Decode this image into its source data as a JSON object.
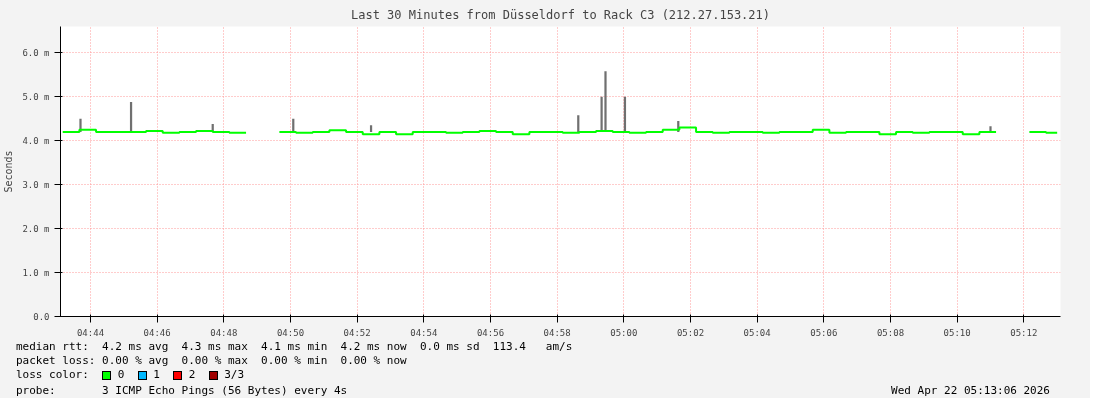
{
  "chart_data": {
    "type": "step",
    "title": "Last 30 Minutes from Düsseldorf to Rack C3 (212.27.153.21)",
    "ylabel": "Seconds",
    "legend_title": "loss color:",
    "legend": "bottom left",
    "grid": true,
    "xlim": [
      "2026-04-22T04:43:06",
      "2026-04-22T05:13:06"
    ],
    "xticks": [
      {
        "value": "2026-04-22T04:44",
        "label": "04:44"
      },
      {
        "value": "2026-04-22T04:46",
        "label": "04:46"
      },
      {
        "value": "2026-04-22T04:48",
        "label": "04:48"
      },
      {
        "value": "2026-04-22T04:50",
        "label": "04:50"
      },
      {
        "value": "2026-04-22T04:52",
        "label": "04:52"
      },
      {
        "value": "2026-04-22T04:54",
        "label": "04:54"
      },
      {
        "value": "2026-04-22T04:56",
        "label": "04:56"
      },
      {
        "value": "2026-04-22T04:58",
        "label": "04:58"
      },
      {
        "value": "2026-04-22T05:00",
        "label": "05:00"
      },
      {
        "value": "2026-04-22T05:02",
        "label": "05:02"
      },
      {
        "value": "2026-04-22T05:04",
        "label": "05:04"
      },
      {
        "value": "2026-04-22T05:06",
        "label": "05:06"
      },
      {
        "value": "2026-04-22T05:08",
        "label": "05:08"
      },
      {
        "value": "2026-04-22T05:10",
        "label": "05:10"
      },
      {
        "value": "2026-04-22T05:12",
        "label": "05:12"
      }
    ],
    "ylim": [
      0,
      6.6
    ],
    "yticks": [
      {
        "value": 0,
        "label": "0.0"
      },
      {
        "value": 1,
        "label": "1.0 m"
      },
      {
        "value": 2,
        "label": "2.0 m"
      },
      {
        "value": 3,
        "label": "3.0 m"
      },
      {
        "value": 4,
        "label": "4.0 m"
      },
      {
        "value": 5,
        "label": "5.0 m"
      },
      {
        "value": 6,
        "label": "6.0 m"
      }
    ],
    "series": [
      {
        "type": "bar",
        "color": "#707070",
        "x": [
          "2026-04-22T04:43:42",
          "2026-04-22T04:45:13",
          "2026-04-22T04:47:40",
          "2026-04-22T04:50:05",
          "2026-04-22T04:52:25",
          "2026-04-22T04:58:38",
          "2026-04-22T04:59:20",
          "2026-04-22T04:59:27",
          "2026-04-22T05:00:02",
          "2026-04-22T05:01:38",
          "2026-04-22T05:11:00"
        ],
        "base": [
          4.2,
          4.2,
          4.2,
          4.2,
          4.2,
          4.2,
          4.2,
          4.2,
          4.2,
          4.2,
          4.2
        ],
        "values": [
          0.3,
          0.68,
          0.18,
          0.3,
          0.15,
          0.38,
          0.8,
          1.38,
          0.8,
          0.25,
          0.13
        ]
      },
      {
        "name": "0",
        "color": "#00ff00",
        "x": [
          "2026-04-22T04:43:10",
          "2026-04-22T04:43:40",
          "2026-04-22T04:44:10",
          "2026-04-22T04:44:40",
          "2026-04-22T04:45:10",
          "2026-04-22T04:45:40",
          "2026-04-22T04:46:10",
          "2026-04-22T04:46:40",
          "2026-04-22T04:47:10",
          "2026-04-22T04:47:40",
          "2026-04-22T04:48:10",
          "2026-04-22T04:48:40",
          "2026-04-22T04:49:10",
          "2026-04-22T04:49:40",
          "2026-04-22T04:50:10",
          "2026-04-22T04:50:40",
          "2026-04-22T04:51:10",
          "2026-04-22T04:51:40",
          "2026-04-22T04:52:10",
          "2026-04-22T04:52:40",
          "2026-04-22T04:53:10",
          "2026-04-22T04:53:40",
          "2026-04-22T04:54:10",
          "2026-04-22T04:54:40",
          "2026-04-22T04:55:10",
          "2026-04-22T04:55:40",
          "2026-04-22T04:56:10",
          "2026-04-22T04:56:40",
          "2026-04-22T04:57:10",
          "2026-04-22T04:57:40",
          "2026-04-22T04:58:10",
          "2026-04-22T04:58:40",
          "2026-04-22T04:59:10",
          "2026-04-22T04:59:40",
          "2026-04-22T05:00:10",
          "2026-04-22T05:00:40",
          "2026-04-22T05:01:10",
          "2026-04-22T05:01:40",
          "2026-04-22T05:02:10",
          "2026-04-22T05:02:40",
          "2026-04-22T05:03:10",
          "2026-04-22T05:03:40",
          "2026-04-22T05:04:10",
          "2026-04-22T05:04:40",
          "2026-04-22T05:05:10",
          "2026-04-22T05:05:40",
          "2026-04-22T05:06:10",
          "2026-04-22T05:06:40",
          "2026-04-22T05:07:10",
          "2026-04-22T05:07:40",
          "2026-04-22T05:08:10",
          "2026-04-22T05:08:40",
          "2026-04-22T05:09:10",
          "2026-04-22T05:09:40",
          "2026-04-22T05:10:10",
          "2026-04-22T05:10:40",
          "2026-04-22T05:11:10",
          "2026-04-22T05:11:40",
          "2026-04-22T05:12:10",
          "2026-04-22T05:12:40",
          "2026-04-22T05:13:00"
        ],
        "values": [
          4.2,
          4.25,
          4.2,
          4.2,
          4.2,
          4.22,
          4.18,
          4.2,
          4.22,
          4.2,
          4.18,
          4.18,
          null,
          4.2,
          4.18,
          4.2,
          4.24,
          4.2,
          4.15,
          4.2,
          4.15,
          4.2,
          4.2,
          4.18,
          4.2,
          4.22,
          4.2,
          4.15,
          4.2,
          4.2,
          4.18,
          4.2,
          4.22,
          4.2,
          4.18,
          4.2,
          4.25,
          4.3,
          4.2,
          4.18,
          4.2,
          4.2,
          4.18,
          4.2,
          4.2,
          4.25,
          4.18,
          4.2,
          4.2,
          4.15,
          4.2,
          4.18,
          4.2,
          4.2,
          4.15,
          4.2,
          4.2,
          null,
          4.2,
          4.18,
          4.18
        ]
      },
      {
        "name": "1",
        "color": "#00b8ff"
      },
      {
        "name": "2",
        "color": "#ff0000"
      },
      {
        "name": "3/3",
        "color": "#a00000"
      }
    ],
    "annotations": [
      "median rtt:  4.2 ms avg  4.3 ms max  4.1 ms min  4.2 ms now  0.0 ms sd  113.4   am/s",
      "packet loss: 0.00 % avg  0.00 % max  0.00 % min  0.00 % now",
      "probe:       3 ICMP Echo Pings (56 Bytes) every 4s",
      "Wed Apr 22 05:13:06 2026"
    ]
  }
}
